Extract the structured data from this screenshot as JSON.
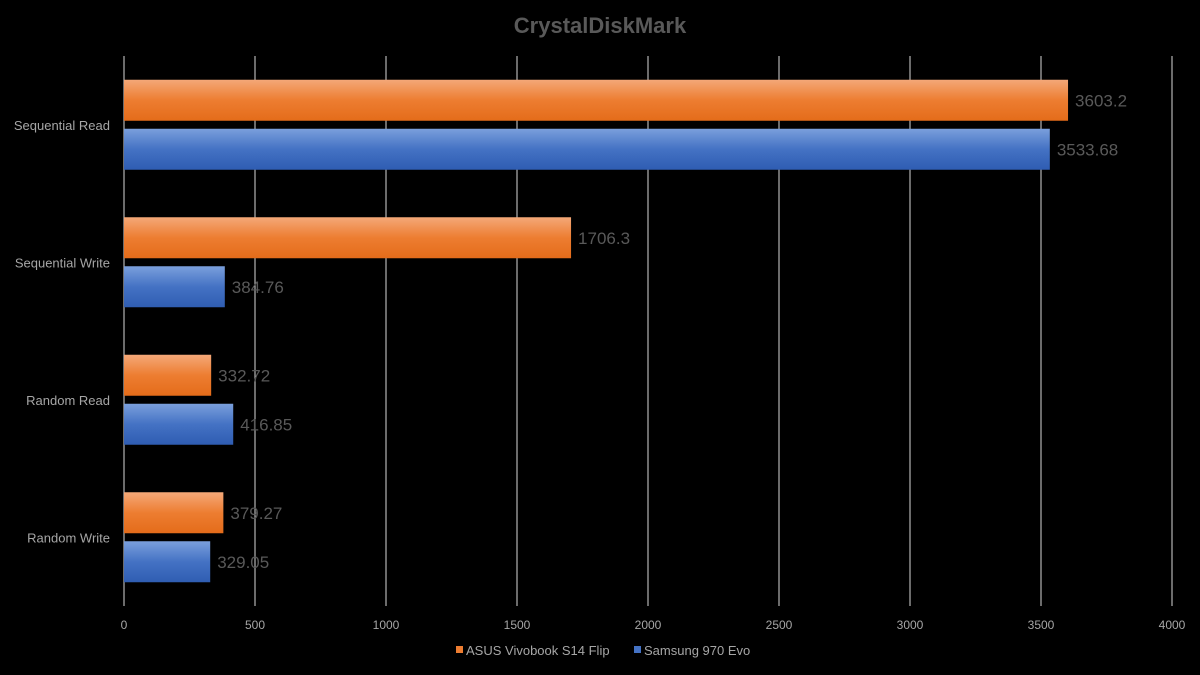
{
  "chart_data": {
    "type": "bar",
    "orientation": "horizontal",
    "title": "CrystalDiskMark",
    "categories": [
      "Sequential Read",
      "Sequential Write",
      "Random Read",
      "Random Write"
    ],
    "series": [
      {
        "name": "ASUS Vivobook S14 Flip",
        "color": "#ed7d31",
        "values": [
          3603.2,
          1706.3,
          332.72,
          379.27
        ]
      },
      {
        "name": "Samsung 970 Evo",
        "color": "#4472c4",
        "values": [
          3533.68,
          384.76,
          416.85,
          329.05
        ]
      }
    ],
    "xlim": [
      0,
      4000
    ],
    "ticks": [
      0,
      500,
      1000,
      1500,
      2000,
      2500,
      3000,
      3500,
      4000
    ],
    "grid": "vertical",
    "legend": "bottom"
  }
}
